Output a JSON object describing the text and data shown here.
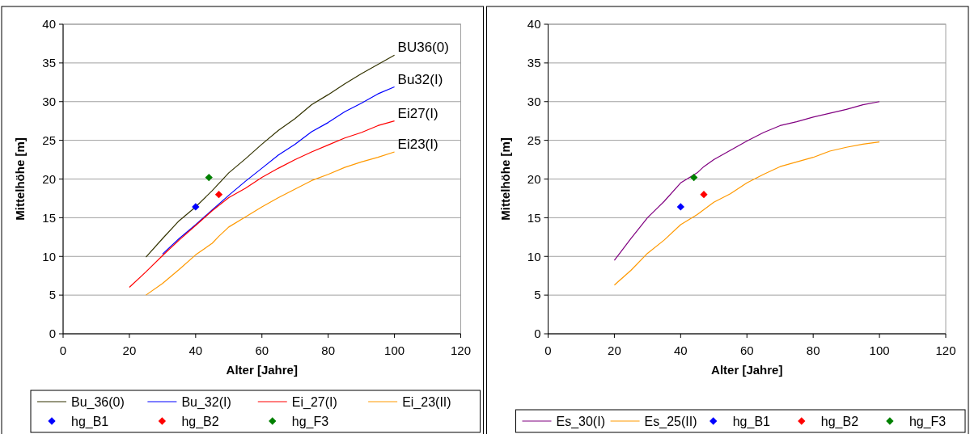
{
  "chart_data": [
    {
      "type": "line",
      "xlabel": "Alter [Jahre]",
      "ylabel": "Mittelhöhe [m]",
      "xlim": [
        0,
        120
      ],
      "xticks": [
        0,
        20,
        40,
        60,
        80,
        100,
        120
      ],
      "ylim": [
        0,
        40
      ],
      "yticks": [
        0,
        5,
        10,
        15,
        20,
        25,
        30,
        35,
        40
      ],
      "grid": "y",
      "legend": "bottom",
      "annotations": [
        "BU36(0)",
        "Bu32(I)",
        "Ei27(I)",
        "Ei23(I)"
      ],
      "series": [
        {
          "name": "Bu_36(0)",
          "marker": "none",
          "color": "#333300",
          "x": [
            25,
            30,
            35,
            40,
            45,
            50,
            55,
            60,
            65,
            70,
            75,
            80,
            85,
            90,
            95,
            100
          ],
          "values": [
            9.9,
            12.3,
            14.6,
            16.4,
            18.5,
            20.8,
            22.6,
            24.5,
            26.3,
            27.8,
            29.6,
            30.9,
            32.3,
            33.6,
            34.8,
            36.0
          ]
        },
        {
          "name": "Bu_32(I)",
          "marker": "none",
          "color": "#0000ff",
          "x": [
            30,
            35,
            40,
            45,
            50,
            55,
            60,
            65,
            70,
            75,
            80,
            85,
            90,
            95,
            100
          ],
          "values": [
            10.3,
            12.3,
            14.1,
            16.0,
            17.9,
            19.7,
            21.4,
            23.1,
            24.5,
            26.1,
            27.3,
            28.7,
            29.8,
            31.0,
            31.9
          ]
        },
        {
          "name": "Ei_27(I)",
          "marker": "none",
          "color": "#ff0000",
          "x": [
            20,
            25,
            30,
            35,
            40,
            45,
            50,
            55,
            60,
            65,
            70,
            75,
            80,
            85,
            90,
            95,
            100
          ],
          "values": [
            6.0,
            8.0,
            10.1,
            12.1,
            14.0,
            15.9,
            17.6,
            18.8,
            20.2,
            21.4,
            22.5,
            23.5,
            24.4,
            25.3,
            26.0,
            26.9,
            27.5
          ]
        },
        {
          "name": "Ei_23(II)",
          "marker": "none",
          "color": "#ff9900",
          "x": [
            25,
            30,
            35,
            40,
            45,
            47,
            50,
            55,
            60,
            65,
            70,
            75,
            80,
            85,
            90,
            95,
            100
          ],
          "values": [
            5.0,
            6.5,
            8.3,
            10.2,
            11.7,
            12.6,
            13.8,
            15.1,
            16.4,
            17.6,
            18.7,
            19.8,
            20.6,
            21.5,
            22.2,
            22.8,
            23.5
          ]
        },
        {
          "name": "hg_B1",
          "type": "scatter",
          "marker": "diamond",
          "color": "#0000ff",
          "x": [
            40
          ],
          "values": [
            16.4
          ]
        },
        {
          "name": "hg_B2",
          "type": "scatter",
          "marker": "diamond",
          "color": "#ff0000",
          "x": [
            47
          ],
          "values": [
            18.0
          ]
        },
        {
          "name": "hg_F3",
          "type": "scatter",
          "marker": "diamond",
          "color": "#008000",
          "x": [
            44
          ],
          "values": [
            20.2
          ]
        }
      ]
    },
    {
      "type": "line",
      "xlabel": "Alter [Jahre]",
      "ylabel": "Mittelhöhe [m]",
      "xlim": [
        0,
        120
      ],
      "xticks": [
        0,
        20,
        40,
        60,
        80,
        100,
        120
      ],
      "ylim": [
        0,
        40
      ],
      "yticks": [
        0,
        5,
        10,
        15,
        20,
        25,
        30,
        35,
        40
      ],
      "grid": "y",
      "legend": "bottom",
      "series": [
        {
          "name": "Es_30(I)",
          "marker": "none",
          "color": "#800080",
          "x": [
            20,
            25,
            30,
            35,
            40,
            45,
            47,
            50,
            55,
            60,
            65,
            70,
            75,
            80,
            85,
            90,
            95,
            100
          ],
          "values": [
            9.5,
            12.3,
            15.0,
            17.1,
            19.5,
            20.8,
            21.6,
            22.5,
            23.7,
            24.9,
            26.0,
            26.9,
            27.4,
            28.0,
            28.5,
            29.0,
            29.6,
            30.0
          ]
        },
        {
          "name": "Es_25(II)",
          "marker": "none",
          "color": "#ff9900",
          "x": [
            20,
            25,
            30,
            35,
            40,
            45,
            50,
            55,
            60,
            65,
            70,
            75,
            80,
            85,
            90,
            95,
            100
          ],
          "values": [
            6.3,
            8.2,
            10.4,
            12.1,
            14.1,
            15.4,
            17.0,
            18.1,
            19.5,
            20.6,
            21.6,
            22.2,
            22.8,
            23.6,
            24.1,
            24.5,
            24.8
          ]
        },
        {
          "name": "hg_B1",
          "type": "scatter",
          "marker": "diamond",
          "color": "#0000ff",
          "x": [
            40
          ],
          "values": [
            16.4
          ]
        },
        {
          "name": "hg_B2",
          "type": "scatter",
          "marker": "diamond",
          "color": "#ff0000",
          "x": [
            47
          ],
          "values": [
            18.0
          ]
        },
        {
          "name": "hg_F3",
          "type": "scatter",
          "marker": "diamond",
          "color": "#008000",
          "x": [
            44
          ],
          "values": [
            20.2
          ]
        }
      ]
    }
  ]
}
